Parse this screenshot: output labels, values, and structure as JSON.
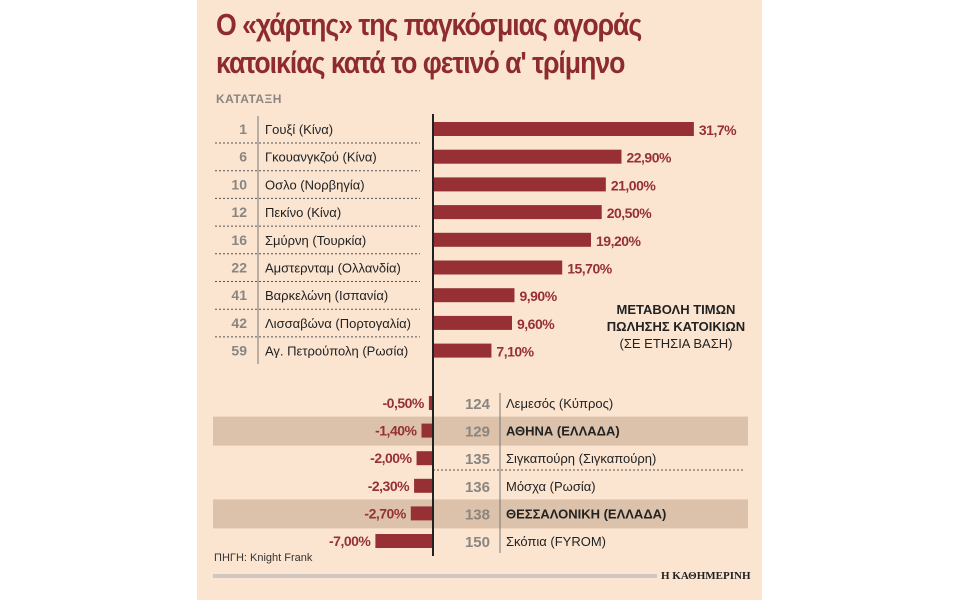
{
  "title_line1": "Ο «χάρτης» της παγκόσμιας αγοράς",
  "title_line2": "κατοικίας κατά το φετινό α' τρίμηνο",
  "rank_label": "ΚΑΤΑΤΑΞΗ",
  "legend": {
    "line1": "ΜΕΤΑΒΟΛΗ ΤΙΜΩΝ",
    "line2": "ΠΩΛΗΣΗΣ ΚΑΤΟΙΚΙΩΝ",
    "line3": "(ΣΕ ΕΤΗΣΙΑ ΒΑΣΗ)"
  },
  "source": "ΠΗΓΗ: Knight Frank",
  "brand": "Η ΚΑΘΗΜΕΡΙΝΗ",
  "colors": {
    "bar": "#963034",
    "title": "#8e2b2e",
    "background": "#fbe5d1",
    "highlight": "#dcc2aa"
  },
  "chart_data": {
    "type": "bar",
    "orientation": "horizontal",
    "unit": "%",
    "xlim": [
      -7,
      31.7
    ],
    "grid": false,
    "positive": [
      {
        "rank": "1",
        "city": "Γουξί (Κίνα)",
        "value": 31.7,
        "label": "31,7%"
      },
      {
        "rank": "6",
        "city": "Γκουανγκζού (Κίνα)",
        "value": 22.9,
        "label": "22,90%"
      },
      {
        "rank": "10",
        "city": "Οσλο (Νορβηγία)",
        "value": 21.0,
        "label": "21,00%"
      },
      {
        "rank": "12",
        "city": "Πεκίνο (Κίνα)",
        "value": 20.5,
        "label": "20,50%"
      },
      {
        "rank": "16",
        "city": "Σμύρνη (Τουρκία)",
        "value": 19.2,
        "label": "19,20%"
      },
      {
        "rank": "22",
        "city": "Αμστερνταμ (Ολλανδία)",
        "value": 15.7,
        "label": "15,70%"
      },
      {
        "rank": "41",
        "city": "Βαρκελώνη (Ισπανία)",
        "value": 9.9,
        "label": "9,90%"
      },
      {
        "rank": "42",
        "city": "Λισσαβώνα (Πορτογαλία)",
        "value": 9.6,
        "label": "9,60%"
      },
      {
        "rank": "59",
        "city": "Αγ. Πετρούπολη (Ρωσία)",
        "value": 7.1,
        "label": "7,10%"
      }
    ],
    "negative": [
      {
        "rank": "124",
        "city": "Λεμεσός (Κύπρος)",
        "value": -0.5,
        "label": "-0,50%",
        "highlight": false
      },
      {
        "rank": "129",
        "city": "ΑΘΗΝΑ (ΕΛΛΑΔΑ)",
        "value": -1.4,
        "label": "-1,40%",
        "highlight": true
      },
      {
        "rank": "135",
        "city": "Σιγκαπούρη (Σιγκαπούρη)",
        "value": -2.0,
        "label": "-2,00%",
        "highlight": false
      },
      {
        "rank": "136",
        "city": "Μόσχα (Ρωσία)",
        "value": -2.3,
        "label": "-2,30%",
        "highlight": false
      },
      {
        "rank": "138",
        "city": "ΘΕΣΣΑΛΟΝΙΚΗ (ΕΛΛΑΔΑ)",
        "value": -2.7,
        "label": "-2,70%",
        "highlight": true
      },
      {
        "rank": "150",
        "city": "Σκόπια (FYROM)",
        "value": -7.0,
        "label": "-7,00%",
        "highlight": false
      }
    ]
  }
}
